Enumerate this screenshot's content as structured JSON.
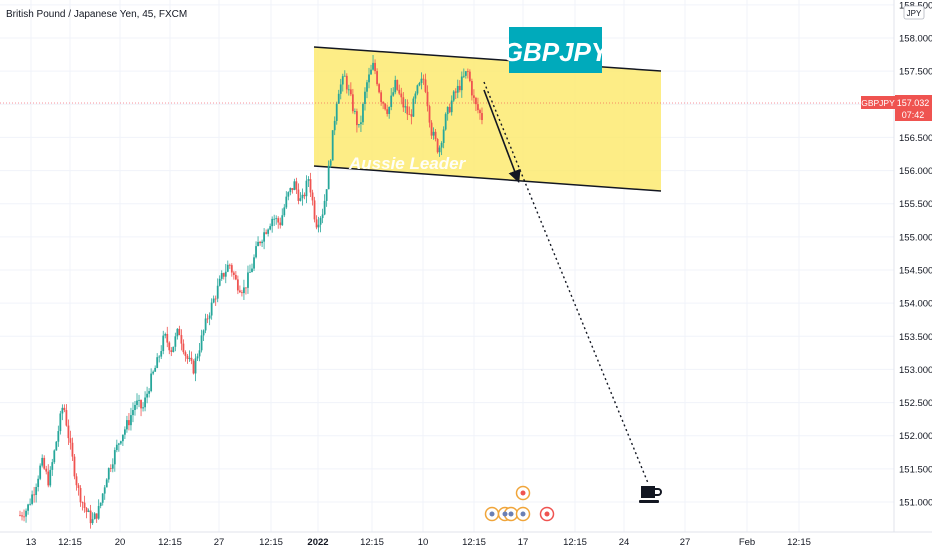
{
  "header": {
    "symbol_title": "British Pound / Japanese Yen, 45, FXCM"
  },
  "annotations": {
    "box_label": "GBPJPY",
    "watermark": "Aussie Leader"
  },
  "price_axis": {
    "currency_badge": "JPY",
    "price_tag": {
      "symbol": "GBPJPY",
      "price": "157.032",
      "countdown": "07:42"
    }
  },
  "colors": {
    "background": "#ffffff",
    "channel_fill": "#fde968",
    "label_bg": "#00aabb",
    "up_candle": "#26a69a",
    "down_candle": "#ef5350",
    "price_tag": "#ef5350",
    "price_line": "#f23645"
  },
  "icons": {
    "target_marker": "coffee-cup-icon",
    "event_markers": "flag-icon"
  },
  "chart_data": {
    "type": "candlestick",
    "title": "British Pound / Japanese Yen, 45, FXCM",
    "x_ticks": [
      "13",
      "12:15",
      "20",
      "12:15",
      "27",
      "12:15",
      "2022",
      "12:15",
      "10",
      "12:15",
      "17",
      "12:15",
      "24",
      "27",
      "Feb",
      "12:15"
    ],
    "y_ticks": [
      151.0,
      151.5,
      152.0,
      152.5,
      153.0,
      153.5,
      154.0,
      154.5,
      155.0,
      155.5,
      156.0,
      156.5,
      157.0,
      157.5,
      158.0,
      158.5
    ],
    "ylim": [
      150.7,
      158.55
    ],
    "grid": true,
    "current_price": 157.032,
    "price_path": [
      150.8,
      150.9,
      151.2,
      151.6,
      151.3,
      151.9,
      152.5,
      151.8,
      151.2,
      150.9,
      150.7,
      150.9,
      151.4,
      151.7,
      152.0,
      152.2,
      152.5,
      152.4,
      152.8,
      153.1,
      153.5,
      153.3,
      153.6,
      153.2,
      153.0,
      153.4,
      153.8,
      154.1,
      154.4,
      154.6,
      154.3,
      154.2,
      154.5,
      154.9,
      155.1,
      155.3,
      155.2,
      155.6,
      155.8,
      155.5,
      155.9,
      155.2,
      155.4,
      156.2,
      157.2,
      157.4,
      157.0,
      156.6,
      157.3,
      157.6,
      157.1,
      156.9,
      157.3,
      157.0,
      156.8,
      157.2,
      157.4,
      156.6,
      156.3,
      156.8,
      157.1,
      157.3,
      157.5,
      157.0,
      156.8
    ],
    "channel": {
      "upper": [
        [
          155.5,
          157.85
        ],
        [
          156.6,
          157.55
        ]
      ],
      "lower": [
        [
          155.5,
          156.05
        ],
        [
          156.6,
          155.7
        ]
      ]
    }
  }
}
